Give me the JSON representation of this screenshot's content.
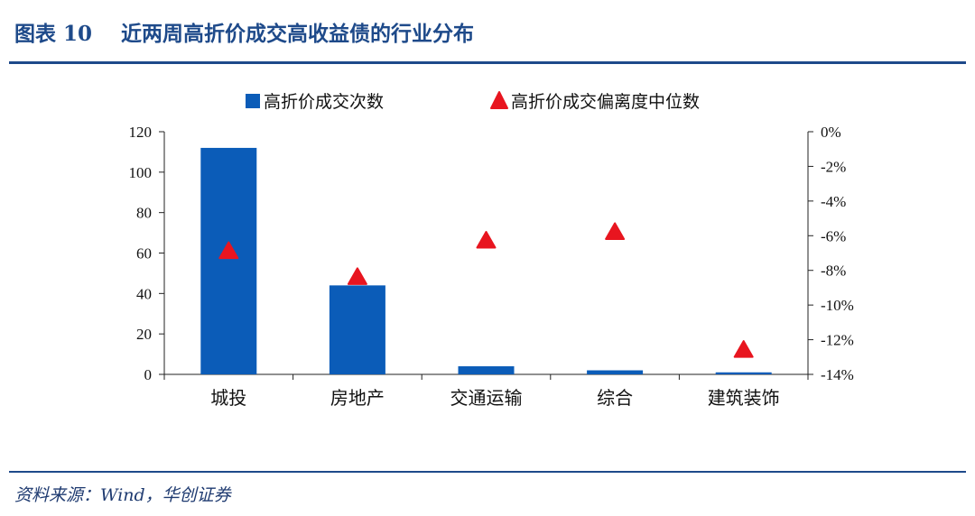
{
  "figure": {
    "title": "图表 10    近两周高折价成交高收益债的行业分布",
    "source": "资料来源：Wind，华创证券"
  },
  "colors": {
    "bar": "#0b5cb8",
    "marker": "#e8151f",
    "rule": "#1e4a8a"
  },
  "chart_data": {
    "type": "bar",
    "categories": [
      "城投",
      "房地产",
      "交通运输",
      "综合",
      "建筑装饰"
    ],
    "series": [
      {
        "name": "高折价成交次数",
        "type": "bar",
        "axis": "left",
        "values": [
          112,
          44,
          4,
          2,
          1
        ]
      },
      {
        "name": "高折价成交偏离度中位数",
        "type": "scatter",
        "axis": "right",
        "marker": "triangle",
        "values": [
          -0.069,
          -0.084,
          -0.063,
          -0.058,
          -0.126
        ]
      }
    ],
    "y_left": {
      "ylim": [
        0,
        120
      ],
      "ticks": [
        0,
        20,
        40,
        60,
        80,
        100,
        120
      ],
      "tick_labels": [
        "0",
        "20",
        "40",
        "60",
        "80",
        "100",
        "120"
      ]
    },
    "y_right": {
      "ylim": [
        -0.14,
        0
      ],
      "ticks": [
        0,
        -0.02,
        -0.04,
        -0.06,
        -0.08,
        -0.1,
        -0.12,
        -0.14
      ],
      "tick_labels": [
        "0%",
        "-2%",
        "-4%",
        "-6%",
        "-8%",
        "-10%",
        "-12%",
        "-14%"
      ]
    },
    "grid": false,
    "legend_position": "top"
  }
}
